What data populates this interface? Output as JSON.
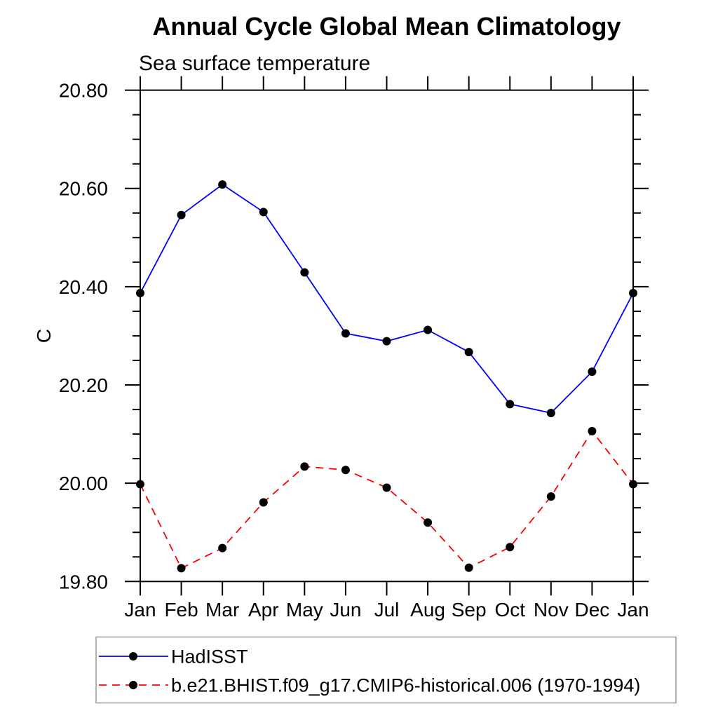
{
  "title": "Annual Cycle Global Mean Climatology",
  "subtitle": "Sea surface temperature",
  "y_axis_label": "C",
  "colors": {
    "axis": "#000000",
    "marker": "#000000",
    "hadisst_line": "#0000ff",
    "model_line": "#ff0000",
    "legend_border": "#999999",
    "background": "#ffffff"
  },
  "legend": {
    "items": [
      {
        "label": "HadISST",
        "color": "#0000ff",
        "line_style": "solid",
        "marker": "filled-circle"
      },
      {
        "label": "b.e21.BHIST.f09_g17.CMIP6-historical.006 (1970-1994)",
        "color": "#ff0000",
        "line_style": "dashed",
        "marker": "filled-circle"
      }
    ]
  },
  "chart_data": {
    "type": "line",
    "title": "Annual Cycle Global Mean Climatology",
    "subtitle": "Sea surface temperature",
    "xlabel": "",
    "ylabel": "C",
    "x_tick_labels": [
      "Jan",
      "Feb",
      "Mar",
      "Apr",
      "May",
      "Jun",
      "Jul",
      "Aug",
      "Sep",
      "Oct",
      "Nov",
      "Dec",
      "Jan"
    ],
    "ylim": [
      19.8,
      20.8
    ],
    "y_major_ticks": [
      19.8,
      20.0,
      20.2,
      20.4,
      20.6,
      20.8
    ],
    "y_tick_labels": [
      "19.80",
      "20.00",
      "20.20",
      "20.40",
      "20.60",
      "20.80"
    ],
    "y_minor_step": 0.05,
    "grid": false,
    "legend_position": "bottom-left-box",
    "series": [
      {
        "name": "HadISST",
        "color": "#0000ff",
        "line_style": "solid",
        "marker": "circle",
        "marker_color": "#000000",
        "values": [
          20.387,
          20.546,
          20.608,
          20.552,
          20.429,
          20.305,
          20.289,
          20.312,
          20.267,
          20.161,
          20.143,
          20.227,
          20.387
        ]
      },
      {
        "name": "b.e21.BHIST.f09_g17.CMIP6-historical.006 (1970-1994)",
        "color": "#ff0000",
        "line_style": "dashed",
        "marker": "circle",
        "marker_color": "#000000",
        "values": [
          19.998,
          19.827,
          19.868,
          19.961,
          20.034,
          20.027,
          19.991,
          19.92,
          19.828,
          19.87,
          19.973,
          20.106,
          19.998
        ]
      }
    ]
  }
}
